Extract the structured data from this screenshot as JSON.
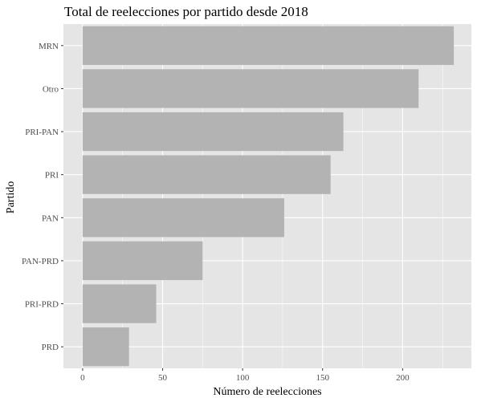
{
  "chart_data": {
    "type": "bar",
    "orientation": "horizontal",
    "title": "Total de reelecciones por partido desde 2018",
    "xlabel": "Número de reelecciones",
    "ylabel": "Partido",
    "categories": [
      "MRN",
      "Otro",
      "PRI-PAN",
      "PRI",
      "PAN",
      "PAN-PRD",
      "PRI-PRD",
      "PRD"
    ],
    "values": [
      232,
      210,
      163,
      155,
      126,
      75,
      46,
      29
    ],
    "xlim": [
      -12,
      243
    ],
    "xticks": [
      0,
      50,
      100,
      150,
      200
    ],
    "grid": true,
    "bar_color": "#b3b3b3",
    "panel_color": "#e5e5e5",
    "grid_color": "#ffffff"
  }
}
